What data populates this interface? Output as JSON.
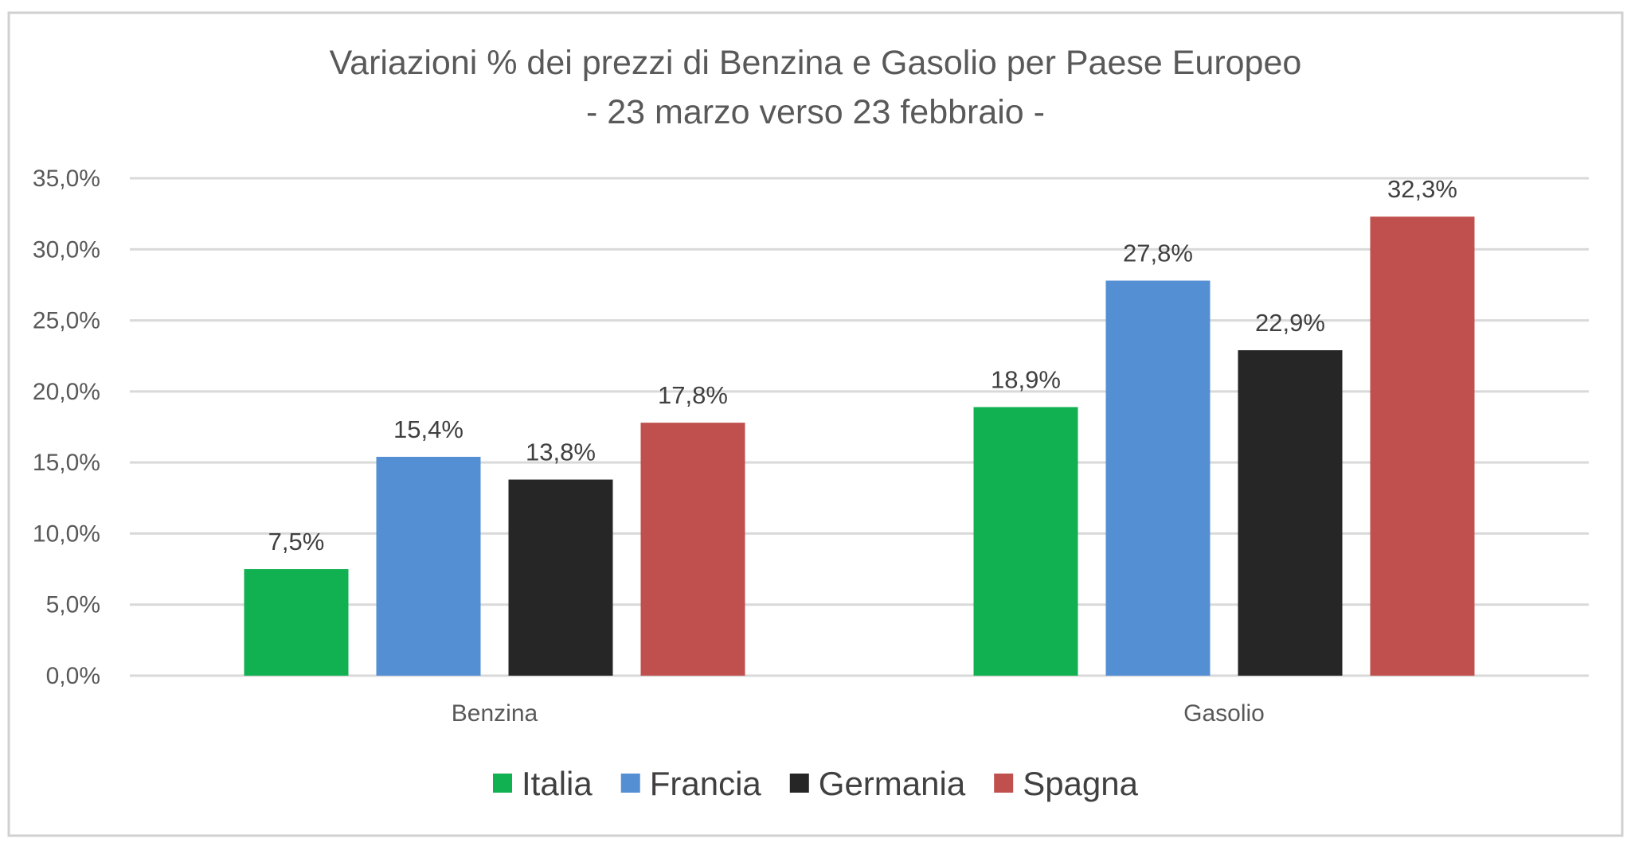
{
  "chart_data": {
    "type": "bar",
    "title": "Variazioni % dei prezzi di Benzina e Gasolio per Paese Europeo",
    "subtitle": "- 23 marzo verso 23 febbraio -",
    "categories": [
      "Benzina",
      "Gasolio"
    ],
    "series": [
      {
        "name": "Italia",
        "color": "#11b050",
        "values": [
          7.5,
          18.9
        ],
        "labels": [
          "7,5%",
          "18,9%"
        ]
      },
      {
        "name": "Francia",
        "color": "#548fd4",
        "values": [
          15.4,
          27.8
        ],
        "labels": [
          "15,4%",
          "27,8%"
        ]
      },
      {
        "name": "Germania",
        "color": "#262626",
        "values": [
          13.8,
          22.9
        ],
        "labels": [
          "13,8%",
          "22,9%"
        ]
      },
      {
        "name": "Spagna",
        "color": "#c0504d",
        "values": [
          17.8,
          32.3
        ],
        "labels": [
          "17,8%",
          "32,3%"
        ]
      }
    ],
    "ylim": [
      0,
      35
    ],
    "yticks": [
      0,
      5,
      10,
      15,
      20,
      25,
      30,
      35
    ],
    "ytick_labels": [
      "0,0%",
      "5,0%",
      "10,0%",
      "15,0%",
      "20,0%",
      "25,0%",
      "30,0%",
      "35,0%"
    ],
    "xlabel": "",
    "ylabel": "",
    "grid": true,
    "legend_position": "bottom"
  }
}
